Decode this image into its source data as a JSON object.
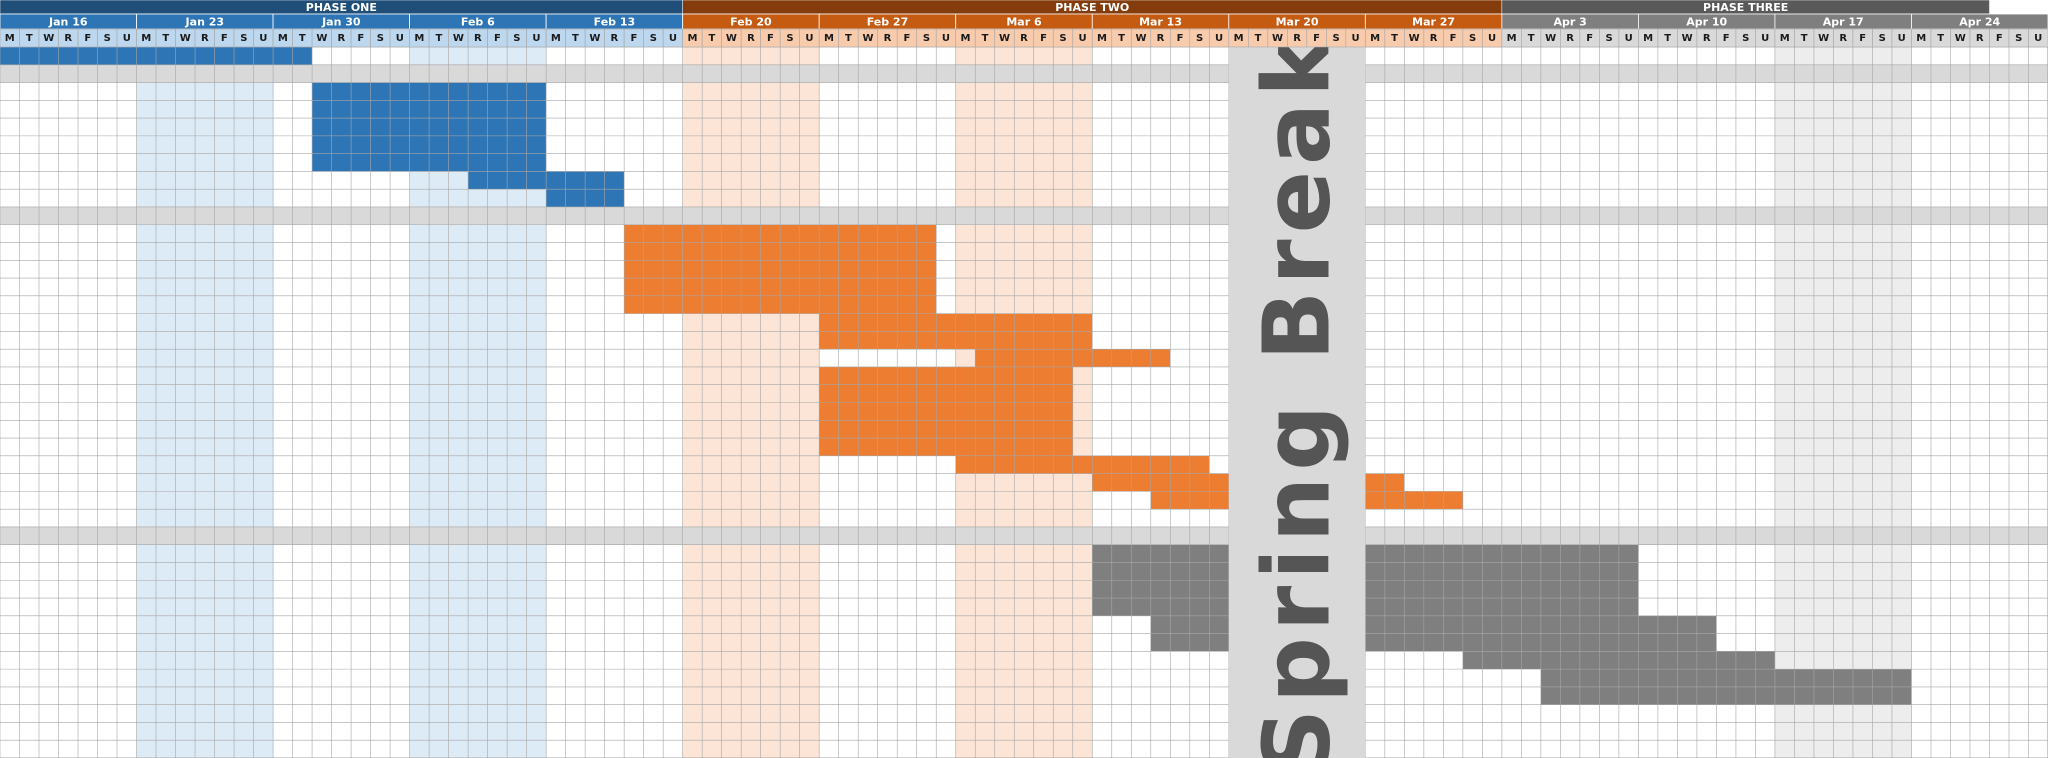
{
  "chart_data": {
    "type": "gantt",
    "phases": [
      {
        "name": "PHASE ONE",
        "start_col": 0,
        "end_col": 35,
        "header_color": "#1f4e79",
        "week_color": "#2e75b6",
        "day_color": "#bdd7ee",
        "shade_color": "#ddebf7",
        "bar_color": "#2e75b6"
      },
      {
        "name": "PHASE TWO",
        "start_col": 35,
        "end_col": 77,
        "header_color": "#843c0c",
        "week_color": "#c55a11",
        "day_color": "#f8cbad",
        "shade_color": "#fce4d6",
        "bar_color": "#ed7d31"
      },
      {
        "name": "PHASE THREE",
        "start_col": 77,
        "end_col": 102,
        "header_color": "#595959",
        "week_color": "#7f7f7f",
        "day_color": "#d9d9d9",
        "shade_color": "#ededed",
        "bar_color": "#7f7f7f"
      }
    ],
    "weeks": [
      {
        "label": "Jan 16",
        "phase": 0
      },
      {
        "label": "Jan 23",
        "phase": 0
      },
      {
        "label": "Jan 30",
        "phase": 0
      },
      {
        "label": "Feb 6",
        "phase": 0
      },
      {
        "label": "Feb 13",
        "phase": 0
      },
      {
        "label": "Feb 20",
        "phase": 1
      },
      {
        "label": "Feb 27",
        "phase": 1
      },
      {
        "label": "Mar 6",
        "phase": 1
      },
      {
        "label": "Mar 13",
        "phase": 1
      },
      {
        "label": "Mar 20",
        "phase": 1
      },
      {
        "label": "Mar 27",
        "phase": 1
      },
      {
        "label": "Apr 3",
        "phase": 2
      },
      {
        "label": "Apr 10",
        "phase": 2
      },
      {
        "label": "Apr 17",
        "phase": 2
      },
      {
        "label": "Apr 24",
        "phase": 2
      }
    ],
    "day_letters": [
      "M",
      "T",
      "W",
      "R",
      "F",
      "S",
      "U"
    ],
    "shaded_weeks": [
      1,
      3,
      5,
      7,
      13
    ],
    "total_rows": 40,
    "separator_rows": [
      1,
      9,
      27
    ],
    "break": {
      "label": "Spring Break",
      "start_col": 63,
      "end_col": 70,
      "color": "#d9d9d9"
    },
    "tasks": [
      {
        "row": 0,
        "start": 0,
        "end": 16,
        "phase": 0
      },
      {
        "row": 2,
        "start": 16,
        "end": 28,
        "phase": 0
      },
      {
        "row": 3,
        "start": 16,
        "end": 28,
        "phase": 0
      },
      {
        "row": 4,
        "start": 16,
        "end": 28,
        "phase": 0
      },
      {
        "row": 5,
        "start": 16,
        "end": 28,
        "phase": 0
      },
      {
        "row": 6,
        "start": 16,
        "end": 28,
        "phase": 0
      },
      {
        "row": 7,
        "start": 24,
        "end": 32,
        "phase": 0
      },
      {
        "row": 8,
        "start": 28,
        "end": 32,
        "phase": 0
      },
      {
        "row": 10,
        "start": 32,
        "end": 48,
        "phase": 1
      },
      {
        "row": 11,
        "start": 32,
        "end": 48,
        "phase": 1
      },
      {
        "row": 12,
        "start": 32,
        "end": 48,
        "phase": 1
      },
      {
        "row": 13,
        "start": 32,
        "end": 48,
        "phase": 1
      },
      {
        "row": 14,
        "start": 32,
        "end": 48,
        "phase": 1
      },
      {
        "row": 15,
        "start": 42,
        "end": 56,
        "phase": 1
      },
      {
        "row": 16,
        "start": 42,
        "end": 56,
        "phase": 1
      },
      {
        "row": 17,
        "start": 50,
        "end": 60,
        "phase": 1
      },
      {
        "row": 18,
        "start": 42,
        "end": 55,
        "phase": 1
      },
      {
        "row": 19,
        "start": 42,
        "end": 55,
        "phase": 1
      },
      {
        "row": 20,
        "start": 42,
        "end": 55,
        "phase": 1
      },
      {
        "row": 21,
        "start": 42,
        "end": 55,
        "phase": 1
      },
      {
        "row": 22,
        "start": 42,
        "end": 55,
        "phase": 1
      },
      {
        "row": 23,
        "start": 49,
        "end": 62,
        "phase": 1
      },
      {
        "row": 24,
        "start": 56,
        "end": 63,
        "phase": 1
      },
      {
        "row": 24,
        "start": 70,
        "end": 72,
        "phase": 1
      },
      {
        "row": 25,
        "start": 59,
        "end": 63,
        "phase": 1
      },
      {
        "row": 25,
        "start": 70,
        "end": 75,
        "phase": 1
      },
      {
        "row": 28,
        "start": 56,
        "end": 63,
        "phase": 2
      },
      {
        "row": 28,
        "start": 70,
        "end": 84,
        "phase": 2
      },
      {
        "row": 29,
        "start": 56,
        "end": 63,
        "phase": 2
      },
      {
        "row": 29,
        "start": 70,
        "end": 84,
        "phase": 2
      },
      {
        "row": 30,
        "start": 56,
        "end": 63,
        "phase": 2
      },
      {
        "row": 30,
        "start": 70,
        "end": 84,
        "phase": 2
      },
      {
        "row": 31,
        "start": 56,
        "end": 63,
        "phase": 2
      },
      {
        "row": 31,
        "start": 70,
        "end": 84,
        "phase": 2
      },
      {
        "row": 32,
        "start": 59,
        "end": 63,
        "phase": 2
      },
      {
        "row": 32,
        "start": 70,
        "end": 88,
        "phase": 2
      },
      {
        "row": 33,
        "start": 59,
        "end": 63,
        "phase": 2
      },
      {
        "row": 33,
        "start": 70,
        "end": 88,
        "phase": 2
      },
      {
        "row": 34,
        "start": 75,
        "end": 91,
        "phase": 2
      },
      {
        "row": 35,
        "start": 79,
        "end": 98,
        "phase": 2
      },
      {
        "row": 36,
        "start": 79,
        "end": 98,
        "phase": 2
      }
    ],
    "separator_color": "#d9d9d9",
    "gridline_color": "#a6a6a6"
  }
}
